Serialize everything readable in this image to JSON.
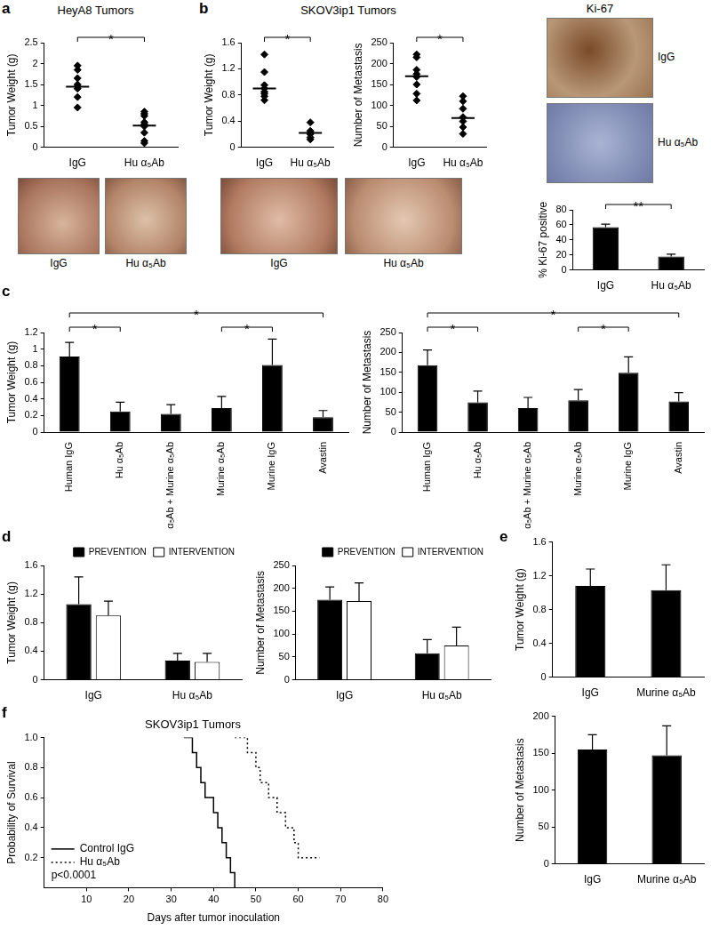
{
  "figure": {
    "panels": [
      {
        "letter": "a",
        "title": "HeyA8 Tumors",
        "photos": [
          "IgG",
          "Hu α₅Ab"
        ]
      },
      {
        "letter": "b",
        "title": "SKOV3ip1 Tumors",
        "photos": [
          "IgG",
          "Hu α₅Ab"
        ],
        "stain": {
          "title": "Ki-67",
          "photos": [
            "IgG",
            "Hu α₅Ab"
          ]
        }
      },
      {
        "letter": "c"
      },
      {
        "letter": "d"
      },
      {
        "letter": "e"
      },
      {
        "letter": "f"
      }
    ]
  },
  "chart_data": [
    {
      "type": "strip",
      "y_label": "Tumor Weight (g)",
      "categories": [
        "IgG",
        "Hu α₅Ab"
      ],
      "values": [
        [
          1.95,
          1.85,
          1.65,
          1.5,
          1.45,
          1.4,
          1.2,
          0.95
        ],
        [
          0.85,
          0.8,
          0.75,
          0.6,
          0.55,
          0.5,
          0.35,
          0.15,
          0.1
        ]
      ],
      "means": [
        1.45,
        0.52
      ],
      "color": "#000000",
      "marker": "diamond",
      "ylim": [
        0,
        2.5
      ],
      "yticks": [
        0,
        0.5,
        1,
        1.5,
        2,
        2.5
      ],
      "grid": false,
      "significance": [
        {
          "between": [
            "IgG",
            "Hu α₅Ab"
          ],
          "label": "*"
        }
      ]
    },
    {
      "type": "strip",
      "y_label": "Tumor Weight (g)",
      "categories": [
        "IgG",
        "Hu α₅Ab"
      ],
      "values": [
        [
          1.42,
          1.15,
          0.95,
          0.9,
          0.85,
          0.82,
          0.78,
          0.72
        ],
        [
          0.38,
          0.25,
          0.22,
          0.2,
          0.15,
          0.12
        ]
      ],
      "means": [
        0.9,
        0.22
      ],
      "color": "#000000",
      "marker": "diamond",
      "ylim": [
        0,
        1.6
      ],
      "yticks": [
        0,
        0.4,
        0.8,
        1.2,
        1.6
      ],
      "grid": false,
      "significance": [
        {
          "between": [
            "IgG",
            "Hu α₅Ab"
          ],
          "label": "*"
        }
      ]
    },
    {
      "type": "strip",
      "y_label": "Number of Metastasis",
      "categories": [
        "IgG",
        "Hu α₅Ab"
      ],
      "values": [
        [
          222,
          215,
          185,
          175,
          168,
          150,
          128,
          112
        ],
        [
          122,
          110,
          92,
          72,
          62,
          48,
          32
        ]
      ],
      "means": [
        170,
        70
      ],
      "color": "#000000",
      "marker": "diamond",
      "ylim": [
        0,
        250
      ],
      "yticks": [
        0,
        50,
        100,
        150,
        200,
        250
      ],
      "grid": false,
      "significance": [
        {
          "between": [
            "IgG",
            "Hu α₅Ab"
          ],
          "label": "*"
        }
      ]
    },
    {
      "type": "bar",
      "y_label": "% Ki-67 positive",
      "categories": [
        "IgG",
        "Hu α₅Ab"
      ],
      "values": [
        57,
        18
      ],
      "errors": [
        4,
        3
      ],
      "color": "#000000",
      "ylim": [
        0,
        80
      ],
      "yticks": [
        0,
        20,
        40,
        60,
        80
      ],
      "grid": false,
      "significance": [
        {
          "between": [
            "IgG",
            "Hu α₅Ab"
          ],
          "label": "**"
        }
      ]
    },
    {
      "type": "bar",
      "y_label": "Tumor Weight (g)",
      "categories": [
        "Human IgG",
        "Hu α₅Ab",
        "Hu α₅Ab + Murine α₅Ab",
        "Murine α₅Ab",
        "Murine IgG",
        "Avastin"
      ],
      "values": [
        0.91,
        0.25,
        0.22,
        0.29,
        0.81,
        0.18
      ],
      "errors": [
        0.17,
        0.11,
        0.11,
        0.14,
        0.31,
        0.08
      ],
      "color": "#000000",
      "ylim": [
        0,
        1.2
      ],
      "yticks": [
        0,
        0.2,
        0.4,
        0.6,
        0.8,
        1,
        1.2
      ],
      "grid": false,
      "significance": [
        {
          "between": [
            "Human IgG",
            "Hu α₅Ab"
          ],
          "label": "*"
        },
        {
          "between": [
            "Murine α₅Ab",
            "Murine IgG"
          ],
          "label": "*"
        },
        {
          "between": [
            "Human IgG",
            "Avastin"
          ],
          "label": "*"
        }
      ]
    },
    {
      "type": "bar",
      "y_label": "Number of Metastasis",
      "categories": [
        "Human IgG",
        "Hu α₅Ab",
        "Hu α₅Ab + Murine α₅Ab",
        "Murine α₅Ab",
        "Murine IgG",
        "Avastin"
      ],
      "values": [
        168,
        75,
        60,
        80,
        149,
        77
      ],
      "errors": [
        38,
        28,
        27,
        27,
        40,
        22
      ],
      "color": "#000000",
      "ylim": [
        0,
        250
      ],
      "yticks": [
        0,
        50,
        100,
        150,
        200,
        250
      ],
      "grid": false,
      "significance": [
        {
          "between": [
            "Human IgG",
            "Hu α₅Ab"
          ],
          "label": "*"
        },
        {
          "between": [
            "Murine α₅Ab",
            "Murine IgG"
          ],
          "label": "*"
        },
        {
          "between": [
            "Human IgG",
            "Avastin"
          ],
          "label": "*"
        }
      ]
    },
    {
      "type": "bar",
      "y_label": "Tumor Weight (g)",
      "categories": [
        "IgG",
        "Hu α₅Ab"
      ],
      "series": [
        {
          "name": "PREVENTION",
          "color": "#000000",
          "values": [
            1.06,
            0.27
          ],
          "errors": [
            0.38,
            0.1
          ]
        },
        {
          "name": "INTERVENTION",
          "color": "#ffffff",
          "values": [
            0.9,
            0.25
          ],
          "errors": [
            0.2,
            0.12
          ]
        }
      ],
      "ylim": [
        0,
        1.6
      ],
      "yticks": [
        0,
        0.4,
        0.8,
        1.2,
        1.6
      ],
      "grid": false,
      "legend": "upper right"
    },
    {
      "type": "bar",
      "y_label": "Number of Metastasis",
      "categories": [
        "IgG",
        "Hu α₅Ab"
      ],
      "series": [
        {
          "name": "PREVENTION",
          "color": "#000000",
          "values": [
            175,
            58
          ],
          "errors": [
            28,
            30
          ]
        },
        {
          "name": "INTERVENTION",
          "color": "#ffffff",
          "values": [
            172,
            75
          ],
          "errors": [
            40,
            40
          ]
        }
      ],
      "ylim": [
        0,
        250
      ],
      "yticks": [
        0,
        50,
        100,
        150,
        200,
        250
      ],
      "grid": false,
      "legend": "upper right"
    },
    {
      "type": "bar",
      "y_label": "Tumor Weight (g)",
      "categories": [
        "IgG",
        "Murine α₅Ab"
      ],
      "values": [
        1.08,
        1.03
      ],
      "errors": [
        0.2,
        0.3
      ],
      "color": "#000000",
      "ylim": [
        0,
        1.6
      ],
      "yticks": [
        0,
        0.4,
        0.8,
        1.2,
        1.6
      ],
      "grid": false
    },
    {
      "type": "bar",
      "y_label": "Number of Metastasis",
      "categories": [
        "IgG",
        "Murine α₅Ab"
      ],
      "values": [
        155,
        147
      ],
      "errors": [
        20,
        40
      ],
      "color": "#000000",
      "ylim": [
        0,
        200
      ],
      "yticks": [
        0,
        50,
        100,
        150,
        200
      ],
      "grid": false
    },
    {
      "type": "line",
      "title": "SKOV3ip1 Tumors",
      "x_label": "Days after tumor inoculation",
      "y_label": "Probability of Survival",
      "series": [
        {
          "name": "Control IgG",
          "color": "#000000",
          "line_style": "solid",
          "x": [
            33,
            35,
            36,
            37,
            38,
            40,
            41,
            42,
            43,
            44,
            45
          ],
          "values": [
            1,
            0.9,
            0.8,
            0.7,
            0.6,
            0.5,
            0.4,
            0.3,
            0.2,
            0.1,
            0
          ]
        },
        {
          "name": "Hu α₅Ab",
          "color": "#000000",
          "line_style": "dotted",
          "x": [
            45,
            48,
            50,
            51,
            53,
            55,
            57,
            59,
            60,
            65
          ],
          "values": [
            1,
            0.9,
            0.8,
            0.7,
            0.6,
            0.5,
            0.4,
            0.3,
            0.2,
            0.2
          ]
        }
      ],
      "xlim": [
        0,
        80
      ],
      "xticks": [
        10,
        20,
        30,
        40,
        50,
        60,
        70,
        80
      ],
      "ylim": [
        0,
        1
      ],
      "yticks": [
        0.2,
        0.4,
        0.6,
        0.8,
        {
          "value": 1,
          "label": "1.0"
        }
      ],
      "grid": false,
      "legend": "lower left",
      "annotation": "p<0.0001"
    }
  ]
}
